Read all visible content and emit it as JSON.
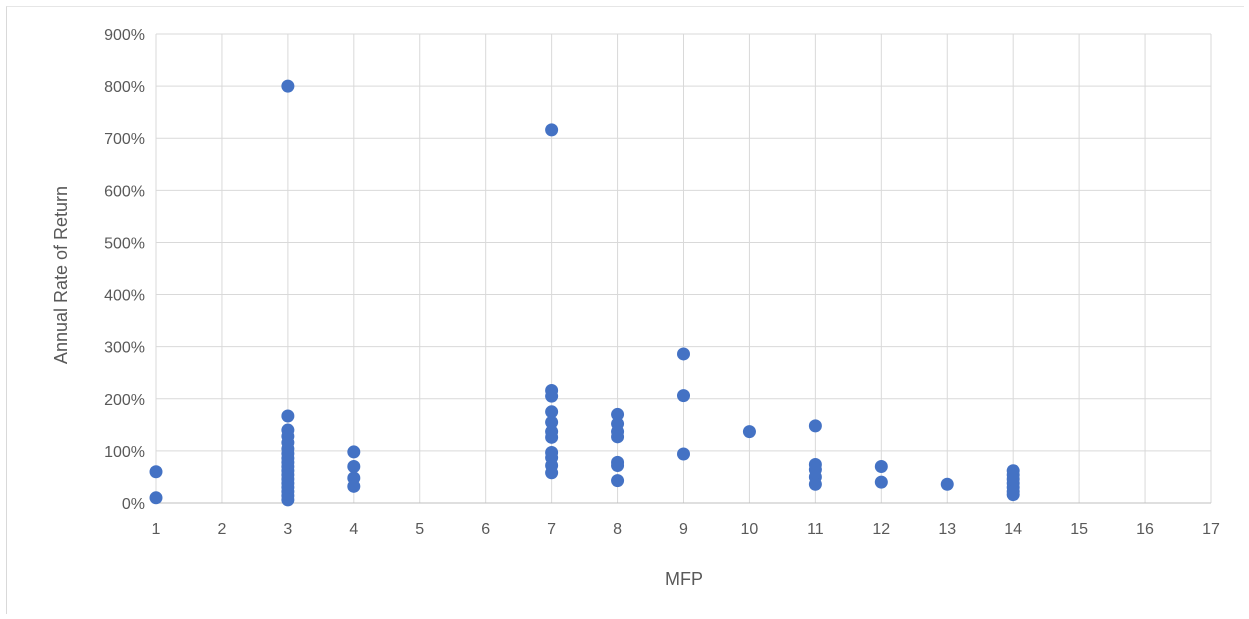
{
  "chart_data": {
    "type": "scatter",
    "title": "",
    "xlabel": "MFP",
    "ylabel": "Annual Rate of Return",
    "xlim": [
      1,
      17
    ],
    "ylim": [
      0,
      900
    ],
    "x_ticks": [
      "1",
      "2",
      "3",
      "4",
      "5",
      "6",
      "7",
      "8",
      "9",
      "10",
      "11",
      "12",
      "13",
      "14",
      "15",
      "16",
      "17"
    ],
    "y_ticks": [
      "0%",
      "100%",
      "200%",
      "300%",
      "400%",
      "500%",
      "600%",
      "700%",
      "800%",
      "900%"
    ],
    "y_unit": "%",
    "grid": true,
    "legend": "none",
    "marker_color": "#4472C4",
    "series": [
      {
        "points": [
          [
            1,
            60
          ],
          [
            1,
            10
          ],
          [
            3,
            800
          ],
          [
            3,
            167
          ],
          [
            3,
            140
          ],
          [
            3,
            128
          ],
          [
            3,
            116
          ],
          [
            3,
            104
          ],
          [
            3,
            95
          ],
          [
            3,
            86
          ],
          [
            3,
            78
          ],
          [
            3,
            70
          ],
          [
            3,
            62
          ],
          [
            3,
            54
          ],
          [
            3,
            46
          ],
          [
            3,
            38
          ],
          [
            3,
            30
          ],
          [
            3,
            22
          ],
          [
            3,
            14
          ],
          [
            3,
            6
          ],
          [
            4,
            98
          ],
          [
            4,
            70
          ],
          [
            4,
            48
          ],
          [
            4,
            32
          ],
          [
            7,
            716
          ],
          [
            7,
            216
          ],
          [
            7,
            205
          ],
          [
            7,
            175
          ],
          [
            7,
            155
          ],
          [
            7,
            137
          ],
          [
            7,
            126
          ],
          [
            7,
            97
          ],
          [
            7,
            87
          ],
          [
            7,
            72
          ],
          [
            7,
            58
          ],
          [
            8,
            170
          ],
          [
            8,
            152
          ],
          [
            8,
            137
          ],
          [
            8,
            127
          ],
          [
            8,
            78
          ],
          [
            8,
            72
          ],
          [
            8,
            43
          ],
          [
            9,
            286
          ],
          [
            9,
            206
          ],
          [
            9,
            94
          ],
          [
            10,
            137
          ],
          [
            11,
            148
          ],
          [
            11,
            74
          ],
          [
            11,
            64
          ],
          [
            11,
            50
          ],
          [
            11,
            36
          ],
          [
            12,
            70
          ],
          [
            12,
            40
          ],
          [
            13,
            36
          ],
          [
            14,
            62
          ],
          [
            14,
            54
          ],
          [
            14,
            46
          ],
          [
            14,
            38
          ],
          [
            14,
            30
          ],
          [
            14,
            22
          ],
          [
            14,
            16
          ]
        ]
      }
    ]
  }
}
